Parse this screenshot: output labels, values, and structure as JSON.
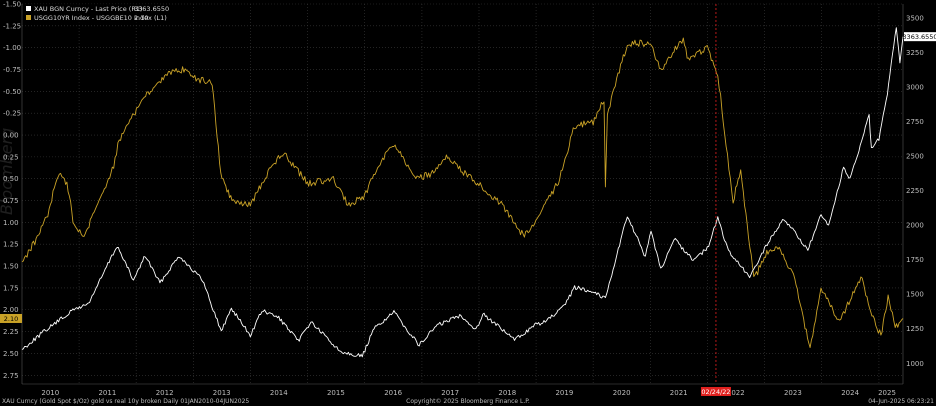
{
  "legend": {
    "gold_label": "XAU BGN Curncy - Last Price (R1)",
    "gold_value": "3363.6550",
    "yield_label": "USGG10YR Index - USGGBE10 Index (L1)",
    "yield_value": "2.10"
  },
  "watermark": "Bloomberg",
  "footer": {
    "left": "XAU Curncy (Gold Spot  $/Oz) gold vs real 10y broken  Daily 01JAN2010-04JUN2025",
    "center": "Copyright© 2025 Bloomberg Finance L.P.",
    "right": "04-Jun-2025 06:23:21"
  },
  "marker": {
    "date_label": "02/24/22"
  },
  "callouts": {
    "gold": "3363.6550",
    "yield": "2.10"
  },
  "colors": {
    "gold": "#ffffff",
    "yield": "#c9a227",
    "marker": "#e0201e",
    "grid": "#3a3a3a",
    "background": "#000000"
  },
  "chart_data": {
    "type": "line",
    "x_range": [
      "2010-01-01",
      "2025-06-04"
    ],
    "x_tick_labels": [
      "2010",
      "2011",
      "2012",
      "2013",
      "2014",
      "2015",
      "2016",
      "2017",
      "2018",
      "2019",
      "2020",
      "2021",
      "2022",
      "2023",
      "2024",
      "2025"
    ],
    "left_axis": {
      "inverted": true,
      "range": [
        2.85,
        -1.5
      ],
      "tick_labels": [
        "-1.50",
        "-1.25",
        "-1.00",
        "-0.75",
        "-0.50",
        "-0.25",
        "0.00",
        "0.25",
        "0.50",
        "0.75",
        "1.00",
        "1.25",
        "1.50",
        "1.75",
        "2.00",
        "2.25",
        "2.50",
        "2.75"
      ]
    },
    "right_axis": {
      "range": [
        850,
        3600
      ],
      "tick_labels": [
        "1000",
        "1250",
        "1500",
        "1750",
        "2000",
        "2250",
        "2500",
        "2750",
        "3000",
        "3250",
        "3500"
      ]
    },
    "grid": true,
    "legend_position": "top-left",
    "vertical_marker": "2022-02-24",
    "series": [
      {
        "name": "XAU BGN Curncy - Last Price (R1)",
        "axis": "right",
        "points": [
          [
            "2010-01-01",
            1100
          ],
          [
            "2010-06-01",
            1240
          ],
          [
            "2010-12-01",
            1390
          ],
          [
            "2011-03-01",
            1430
          ],
          [
            "2011-09-01",
            1850
          ],
          [
            "2011-12-15",
            1600
          ],
          [
            "2012-02-28",
            1780
          ],
          [
            "2012-06-01",
            1580
          ],
          [
            "2012-10-01",
            1780
          ],
          [
            "2013-03-01",
            1600
          ],
          [
            "2013-06-28",
            1230
          ],
          [
            "2013-09-01",
            1400
          ],
          [
            "2013-12-31",
            1200
          ],
          [
            "2014-03-15",
            1380
          ],
          [
            "2014-07-01",
            1330
          ],
          [
            "2014-11-01",
            1160
          ],
          [
            "2015-01-22",
            1300
          ],
          [
            "2015-07-24",
            1090
          ],
          [
            "2015-12-17",
            1050
          ],
          [
            "2016-03-01",
            1250
          ],
          [
            "2016-07-06",
            1370
          ],
          [
            "2016-12-15",
            1130
          ],
          [
            "2017-04-01",
            1270
          ],
          [
            "2017-09-08",
            1350
          ],
          [
            "2017-12-12",
            1240
          ],
          [
            "2018-01-25",
            1360
          ],
          [
            "2018-08-16",
            1170
          ],
          [
            "2018-12-31",
            1280
          ],
          [
            "2019-03-01",
            1300
          ],
          [
            "2019-06-30",
            1410
          ],
          [
            "2019-09-04",
            1550
          ],
          [
            "2019-12-31",
            1520
          ],
          [
            "2020-03-19",
            1470
          ],
          [
            "2020-08-06",
            2070
          ],
          [
            "2020-11-30",
            1770
          ],
          [
            "2021-01-05",
            1950
          ],
          [
            "2021-03-08",
            1680
          ],
          [
            "2021-06-01",
            1900
          ],
          [
            "2021-09-30",
            1750
          ],
          [
            "2021-12-31",
            1830
          ],
          [
            "2022-03-08",
            2050
          ],
          [
            "2022-05-15",
            1810
          ],
          [
            "2022-09-28",
            1620
          ],
          [
            "2023-01-01",
            1830
          ],
          [
            "2023-05-04",
            2050
          ],
          [
            "2023-10-05",
            1820
          ],
          [
            "2023-12-28",
            2070
          ],
          [
            "2024-02-14",
            1990
          ],
          [
            "2024-05-20",
            2420
          ],
          [
            "2024-07-01",
            2330
          ],
          [
            "2024-10-30",
            2790
          ],
          [
            "2024-11-14",
            2560
          ],
          [
            "2025-01-01",
            2620
          ],
          [
            "2025-02-24",
            2950
          ],
          [
            "2025-04-22",
            3430
          ],
          [
            "2025-05-15",
            3180
          ],
          [
            "2025-06-04",
            3363.655
          ]
        ]
      },
      {
        "name": "USGG10YR Index - USGGBE10 Index (L1)",
        "axis": "left",
        "points": [
          [
            "2010-01-01",
            1.45
          ],
          [
            "2010-04-01",
            1.2
          ],
          [
            "2010-06-15",
            0.9
          ],
          [
            "2010-08-20",
            0.45
          ],
          [
            "2010-10-15",
            0.55
          ],
          [
            "2010-12-01",
            1.05
          ],
          [
            "2011-02-01",
            1.15
          ],
          [
            "2011-05-01",
            0.8
          ],
          [
            "2011-08-10",
            0.35
          ],
          [
            "2011-09-15",
            0.05
          ],
          [
            "2011-12-01",
            -0.2
          ],
          [
            "2012-03-01",
            -0.45
          ],
          [
            "2012-07-25",
            -0.7
          ],
          [
            "2012-11-01",
            -0.75
          ],
          [
            "2013-01-01",
            -0.65
          ],
          [
            "2013-05-01",
            -0.6
          ],
          [
            "2013-06-25",
            0.45
          ],
          [
            "2013-09-05",
            0.75
          ],
          [
            "2013-12-31",
            0.8
          ],
          [
            "2014-05-01",
            0.4
          ],
          [
            "2014-08-01",
            0.2
          ],
          [
            "2014-12-31",
            0.55
          ],
          [
            "2015-06-15",
            0.5
          ],
          [
            "2015-09-15",
            0.8
          ],
          [
            "2016-01-01",
            0.7
          ],
          [
            "2016-04-01",
            0.35
          ],
          [
            "2016-07-06",
            0.1
          ],
          [
            "2016-11-15",
            0.5
          ],
          [
            "2017-03-01",
            0.45
          ],
          [
            "2017-06-15",
            0.25
          ],
          [
            "2017-09-08",
            0.4
          ],
          [
            "2018-01-25",
            0.6
          ],
          [
            "2018-06-01",
            0.8
          ],
          [
            "2018-10-10",
            1.15
          ],
          [
            "2018-12-31",
            1.0
          ],
          [
            "2019-06-01",
            0.5
          ],
          [
            "2019-09-04",
            -0.1
          ],
          [
            "2020-01-01",
            -0.15
          ],
          [
            "2020-03-10",
            -0.4
          ],
          [
            "2020-03-19",
            0.6
          ],
          [
            "2020-04-01",
            -0.25
          ],
          [
            "2020-08-06",
            -1.05
          ],
          [
            "2020-12-31",
            -1.05
          ],
          [
            "2021-03-08",
            -0.75
          ],
          [
            "2021-07-30",
            -1.1
          ],
          [
            "2021-09-01",
            -0.85
          ],
          [
            "2021-12-31",
            -1.0
          ],
          [
            "2022-03-08",
            -0.7
          ],
          [
            "2022-04-30",
            0.1
          ],
          [
            "2022-06-14",
            0.75
          ],
          [
            "2022-08-01",
            0.4
          ],
          [
            "2022-10-24",
            1.65
          ],
          [
            "2023-01-15",
            1.35
          ],
          [
            "2023-04-05",
            1.3
          ],
          [
            "2023-07-05",
            1.6
          ],
          [
            "2023-10-19",
            2.45
          ],
          [
            "2023-12-28",
            1.75
          ],
          [
            "2024-04-25",
            2.15
          ],
          [
            "2024-06-15",
            1.95
          ],
          [
            "2024-09-16",
            1.6
          ],
          [
            "2024-11-01",
            2.0
          ],
          [
            "2025-01-14",
            2.3
          ],
          [
            "2025-03-01",
            1.85
          ],
          [
            "2025-04-15",
            2.2
          ],
          [
            "2025-06-04",
            2.1
          ]
        ]
      }
    ]
  }
}
